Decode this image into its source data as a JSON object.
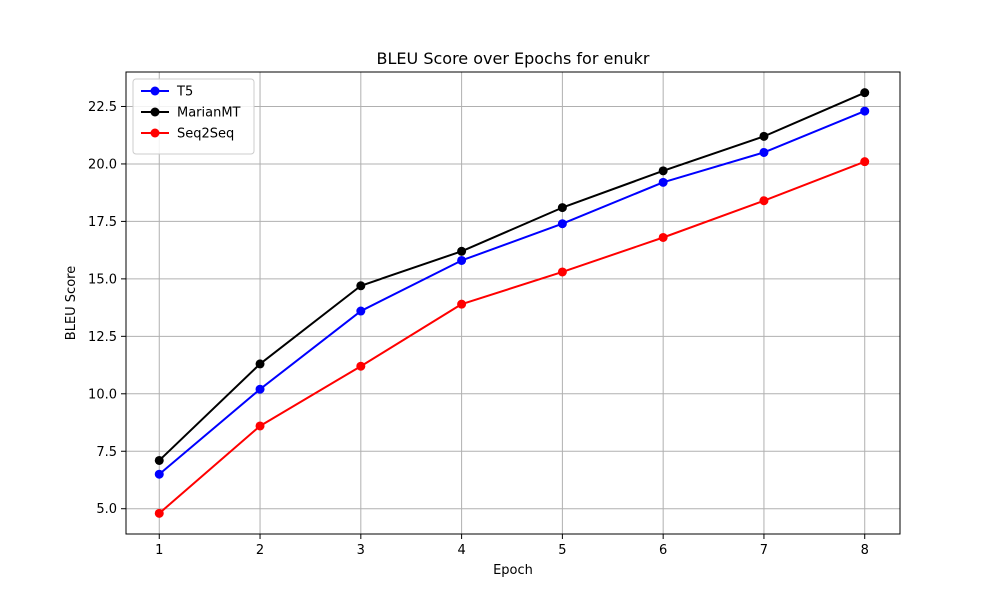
{
  "chart_data": {
    "type": "line",
    "title": "BLEU Score over Epochs for enukr",
    "xlabel": "Epoch",
    "ylabel": "BLEU Score",
    "x": [
      1,
      2,
      3,
      4,
      5,
      6,
      7,
      8
    ],
    "xlim": [
      0.67,
      8.35
    ],
    "ylim": [
      3.9,
      24.0
    ],
    "xticks": [
      1,
      2,
      3,
      4,
      5,
      6,
      7,
      8
    ],
    "xtick_labels": [
      "1",
      "2",
      "3",
      "4",
      "5",
      "6",
      "7",
      "8"
    ],
    "yticks": [
      5.0,
      7.5,
      10.0,
      12.5,
      15.0,
      17.5,
      20.0,
      22.5
    ],
    "ytick_labels": [
      "5.0",
      "7.5",
      "10.0",
      "12.5",
      "15.0",
      "17.5",
      "20.0",
      "22.5"
    ],
    "grid": true,
    "legend_position": "top-left",
    "series": [
      {
        "name": "T5",
        "color": "#0000ff",
        "marker": "circle",
        "values": [
          6.5,
          10.2,
          13.6,
          15.8,
          17.4,
          19.2,
          20.5,
          22.3
        ]
      },
      {
        "name": " MarianMT",
        "color": "#000000",
        "marker": "circle",
        "values": [
          7.1,
          11.3,
          14.7,
          16.2,
          18.1,
          19.7,
          21.2,
          23.1
        ]
      },
      {
        "name": "Seq2Seq",
        "color": "#ff0000",
        "marker": "circle",
        "values": [
          4.8,
          8.6,
          11.2,
          13.9,
          15.3,
          16.8,
          18.4,
          20.1
        ]
      }
    ]
  }
}
